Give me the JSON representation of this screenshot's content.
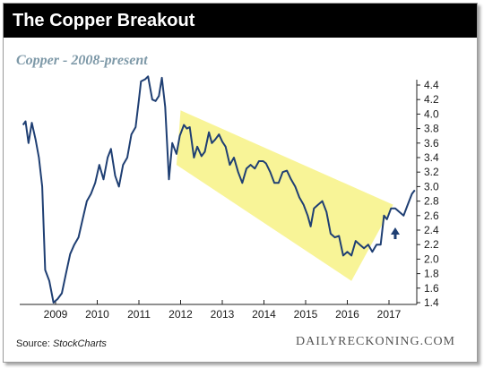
{
  "header": {
    "title": "The Copper Breakout"
  },
  "subtitle": "Copper - 2008-present",
  "footer": {
    "source_prefix": "Source: ",
    "source_name": "StockCharts",
    "brand": "DAILYRECKONING.COM"
  },
  "colors": {
    "line": "#1f3f73",
    "channel": "#f7f38c",
    "arrow": "#1f3f73",
    "title_bg": "#000000",
    "subtitle": "#7e99a8"
  },
  "chart_data": {
    "type": "line",
    "title": "The Copper Breakout",
    "subtitle": "Copper - 2008-present",
    "xlabel": "",
    "ylabel": "",
    "xlim": [
      2008.2,
      2017.7
    ],
    "ylim": [
      1.4,
      4.5
    ],
    "grid": false,
    "x_ticks": [
      2009,
      2010,
      2011,
      2012,
      2013,
      2014,
      2015,
      2016,
      2017
    ],
    "x_tick_labels": [
      "2009",
      "2010",
      "2011",
      "2012",
      "2013",
      "2014",
      "2015",
      "2016",
      "2017"
    ],
    "y_ticks": [
      1.4,
      1.6,
      1.8,
      2.0,
      2.2,
      2.4,
      2.6,
      2.8,
      3.0,
      3.2,
      3.4,
      3.6,
      3.8,
      4.0,
      4.2,
      4.4
    ],
    "y_tick_labels": [
      "1.4",
      "1.6",
      "1.8",
      "2.0",
      "2.2",
      "2.4",
      "2.6",
      "2.8",
      "3.0",
      "3.2",
      "3.4",
      "3.6",
      "3.8",
      "4.0",
      "4.2",
      "4.4"
    ],
    "y_axis_side": "right",
    "series": [
      {
        "points": [
          [
            2008.22,
            3.85
          ],
          [
            2008.28,
            3.9
          ],
          [
            2008.35,
            3.6
          ],
          [
            2008.43,
            3.88
          ],
          [
            2008.52,
            3.65
          ],
          [
            2008.6,
            3.4
          ],
          [
            2008.68,
            3.0
          ],
          [
            2008.75,
            1.85
          ],
          [
            2008.85,
            1.7
          ],
          [
            2008.95,
            1.4
          ],
          [
            2009.05,
            1.45
          ],
          [
            2009.15,
            1.53
          ],
          [
            2009.25,
            1.8
          ],
          [
            2009.35,
            2.07
          ],
          [
            2009.45,
            2.2
          ],
          [
            2009.55,
            2.3
          ],
          [
            2009.65,
            2.55
          ],
          [
            2009.75,
            2.8
          ],
          [
            2009.85,
            2.9
          ],
          [
            2009.95,
            3.05
          ],
          [
            2010.05,
            3.3
          ],
          [
            2010.15,
            3.1
          ],
          [
            2010.25,
            3.4
          ],
          [
            2010.33,
            3.52
          ],
          [
            2010.43,
            3.15
          ],
          [
            2010.52,
            3.0
          ],
          [
            2010.62,
            3.3
          ],
          [
            2010.72,
            3.4
          ],
          [
            2010.82,
            3.72
          ],
          [
            2010.92,
            3.82
          ],
          [
            2011.0,
            4.2
          ],
          [
            2011.05,
            4.45
          ],
          [
            2011.15,
            4.48
          ],
          [
            2011.22,
            4.52
          ],
          [
            2011.32,
            4.2
          ],
          [
            2011.4,
            4.18
          ],
          [
            2011.48,
            4.25
          ],
          [
            2011.55,
            4.5
          ],
          [
            2011.63,
            4.1
          ],
          [
            2011.72,
            3.1
          ],
          [
            2011.8,
            3.6
          ],
          [
            2011.9,
            3.45
          ],
          [
            2011.98,
            3.7
          ],
          [
            2012.08,
            3.85
          ],
          [
            2012.15,
            3.8
          ],
          [
            2012.22,
            3.82
          ],
          [
            2012.32,
            3.4
          ],
          [
            2012.4,
            3.55
          ],
          [
            2012.5,
            3.42
          ],
          [
            2012.58,
            3.48
          ],
          [
            2012.68,
            3.75
          ],
          [
            2012.75,
            3.6
          ],
          [
            2012.83,
            3.65
          ],
          [
            2012.92,
            3.72
          ],
          [
            2013.0,
            3.62
          ],
          [
            2013.08,
            3.55
          ],
          [
            2013.18,
            3.3
          ],
          [
            2013.28,
            3.4
          ],
          [
            2013.38,
            3.2
          ],
          [
            2013.48,
            3.05
          ],
          [
            2013.58,
            3.25
          ],
          [
            2013.68,
            3.3
          ],
          [
            2013.78,
            3.25
          ],
          [
            2013.88,
            3.35
          ],
          [
            2013.98,
            3.35
          ],
          [
            2014.05,
            3.32
          ],
          [
            2014.15,
            3.2
          ],
          [
            2014.25,
            3.05
          ],
          [
            2014.35,
            3.05
          ],
          [
            2014.45,
            3.2
          ],
          [
            2014.55,
            3.22
          ],
          [
            2014.65,
            3.1
          ],
          [
            2014.75,
            3.0
          ],
          [
            2014.85,
            2.85
          ],
          [
            2014.95,
            2.75
          ],
          [
            2015.05,
            2.6
          ],
          [
            2015.12,
            2.45
          ],
          [
            2015.2,
            2.7
          ],
          [
            2015.3,
            2.75
          ],
          [
            2015.4,
            2.8
          ],
          [
            2015.5,
            2.65
          ],
          [
            2015.6,
            2.35
          ],
          [
            2015.7,
            2.3
          ],
          [
            2015.8,
            2.32
          ],
          [
            2015.9,
            2.05
          ],
          [
            2016.0,
            2.1
          ],
          [
            2016.1,
            2.05
          ],
          [
            2016.2,
            2.25
          ],
          [
            2016.3,
            2.2
          ],
          [
            2016.4,
            2.15
          ],
          [
            2016.5,
            2.2
          ],
          [
            2016.6,
            2.1
          ],
          [
            2016.7,
            2.2
          ],
          [
            2016.8,
            2.2
          ],
          [
            2016.88,
            2.6
          ],
          [
            2016.95,
            2.55
          ],
          [
            2017.05,
            2.7
          ],
          [
            2017.15,
            2.7
          ],
          [
            2017.25,
            2.65
          ],
          [
            2017.35,
            2.6
          ],
          [
            2017.45,
            2.75
          ],
          [
            2017.55,
            2.9
          ],
          [
            2017.62,
            2.95
          ]
        ]
      }
    ],
    "annotations": [
      {
        "type": "channel",
        "upper_start": [
          2012.0,
          4.05
        ],
        "upper_end": [
          2017.1,
          2.75
        ],
        "lower_start": [
          2011.9,
          3.3
        ],
        "lower_end": [
          2016.1,
          1.7
        ]
      },
      {
        "type": "arrow",
        "x": 2017.15,
        "y": 2.35,
        "direction": "up"
      }
    ]
  }
}
